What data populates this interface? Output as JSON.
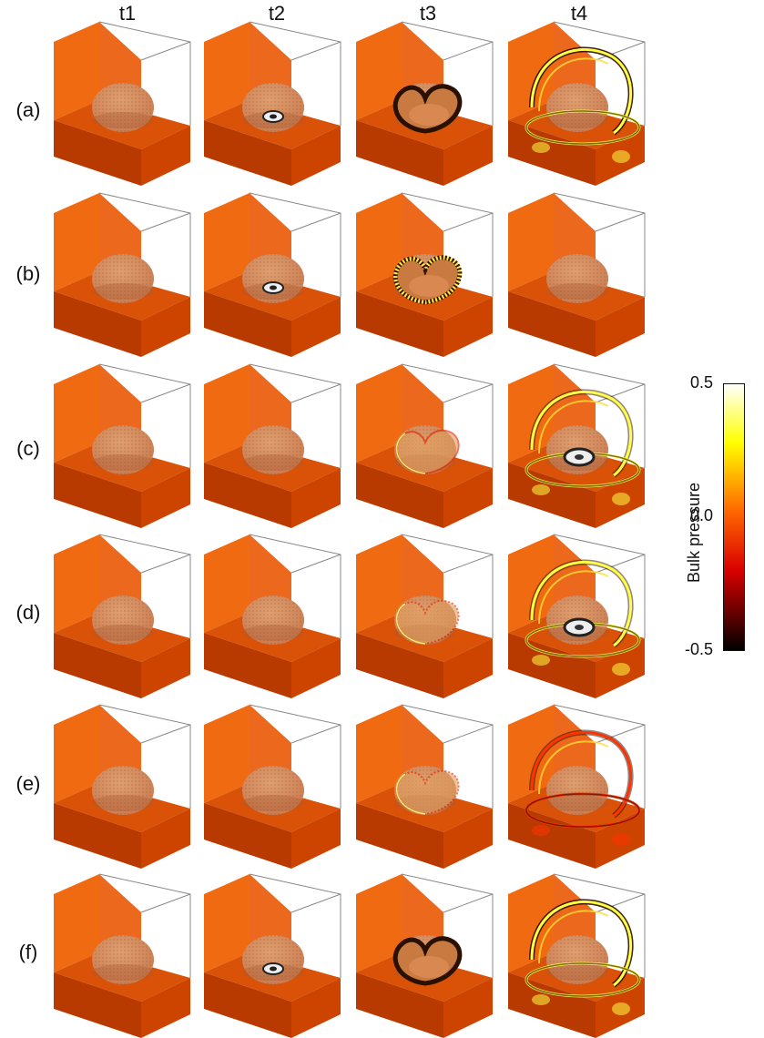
{
  "columns": [
    "t1",
    "t2",
    "t3",
    "t4"
  ],
  "rows": [
    "(a)",
    "(b)",
    "(c)",
    "(d)",
    "(e)",
    "(f)"
  ],
  "panels": {
    "(a)": [
      "none",
      "spot",
      "heart",
      "rings_strong"
    ],
    "(b)": [
      "none",
      "spot",
      "heart_dotted",
      "none"
    ],
    "(c)": [
      "none",
      "none",
      "heart_faint",
      "rings_spot"
    ],
    "(d)": [
      "none",
      "none",
      "heart_dotted_faint",
      "rings_spot"
    ],
    "(e)": [
      "none",
      "none",
      "heart_dotted_faint",
      "rings_red"
    ],
    "(f)": [
      "none",
      "spot",
      "heart",
      "rings_strong"
    ]
  },
  "colorbar": {
    "label": "Bulk pressure",
    "ticks": [
      "0.5",
      "0.0",
      "-0.5"
    ],
    "min": -0.5,
    "max": 0.5,
    "colors": [
      "#000000",
      "#d80000",
      "#ff6600",
      "#ffff00",
      "#ffffff"
    ]
  },
  "box_colors": {
    "front": "#b83a00",
    "right": "#cc4400",
    "top": "#ea6010",
    "back_wall": "#f06a12",
    "floor": "#d95208",
    "dome": "#c87a50"
  }
}
